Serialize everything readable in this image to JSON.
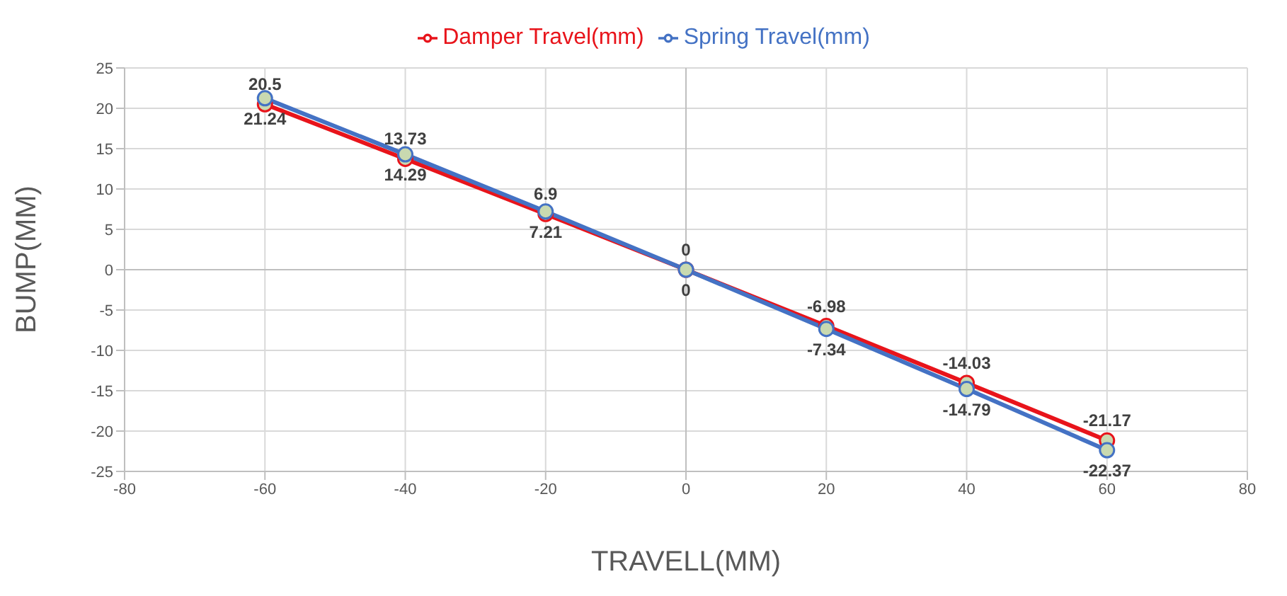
{
  "chart_data": {
    "type": "line",
    "xlabel": "TRAVELL(MM)",
    "ylabel": "BUMP(MM)",
    "x": [
      -60,
      -40,
      -20,
      0,
      20,
      40,
      60
    ],
    "series": [
      {
        "name": "Damper Travel(mm)",
        "color": "#e8141b",
        "values": [
          20.5,
          13.73,
          6.9,
          0,
          -6.98,
          -14.03,
          -21.17
        ]
      },
      {
        "name": "Spring Travel(mm)",
        "color": "#4472c4",
        "values": [
          21.24,
          14.29,
          7.21,
          0,
          -7.34,
          -14.79,
          -22.37
        ]
      }
    ],
    "xlim": [
      -80,
      80
    ],
    "xticks": [
      -80,
      -60,
      -40,
      -20,
      0,
      20,
      40,
      60,
      80
    ],
    "ylim": [
      -25,
      25
    ],
    "yticks": [
      -25,
      -20,
      -15,
      -10,
      -5,
      0,
      5,
      10,
      15,
      20,
      25
    ],
    "grid": true,
    "legend": "top",
    "marker": "circle",
    "data_labels": true
  }
}
